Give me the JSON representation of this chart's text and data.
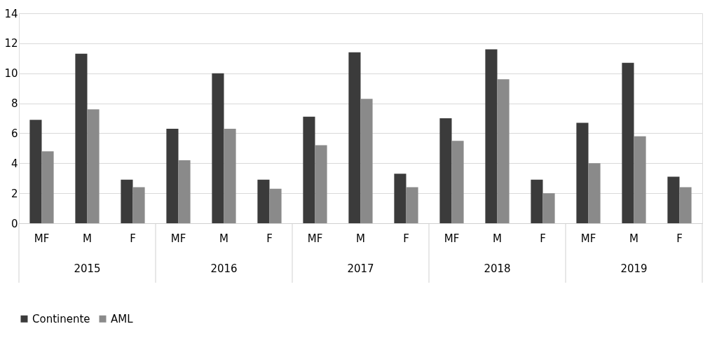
{
  "chart_data": {
    "type": "bar",
    "categories": [
      "MF",
      "M",
      "F",
      "MF",
      "M",
      "F",
      "MF",
      "M",
      "F",
      "MF",
      "M",
      "F",
      "MF",
      "M",
      "F"
    ],
    "series": [
      {
        "name": "Continente",
        "color": "#3b3b3b",
        "values": [
          6.9,
          11.3,
          2.9,
          6.3,
          10.0,
          2.9,
          7.1,
          11.4,
          3.3,
          7.0,
          11.6,
          2.9,
          6.7,
          10.7,
          3.1
        ]
      },
      {
        "name": "AML",
        "color": "#8a8a8a",
        "values": [
          4.8,
          7.6,
          2.4,
          4.2,
          6.3,
          2.3,
          5.2,
          8.3,
          2.4,
          5.5,
          9.6,
          2.0,
          4.0,
          5.8,
          2.4
        ]
      }
    ],
    "annotations": [
      "2015",
      "2016",
      "2017",
      "2018",
      "2019"
    ],
    "ylim": [
      0,
      14
    ],
    "yticks": [
      0,
      2,
      4,
      6,
      8,
      10,
      12,
      14
    ],
    "grid": "y",
    "legend": "bottom"
  }
}
